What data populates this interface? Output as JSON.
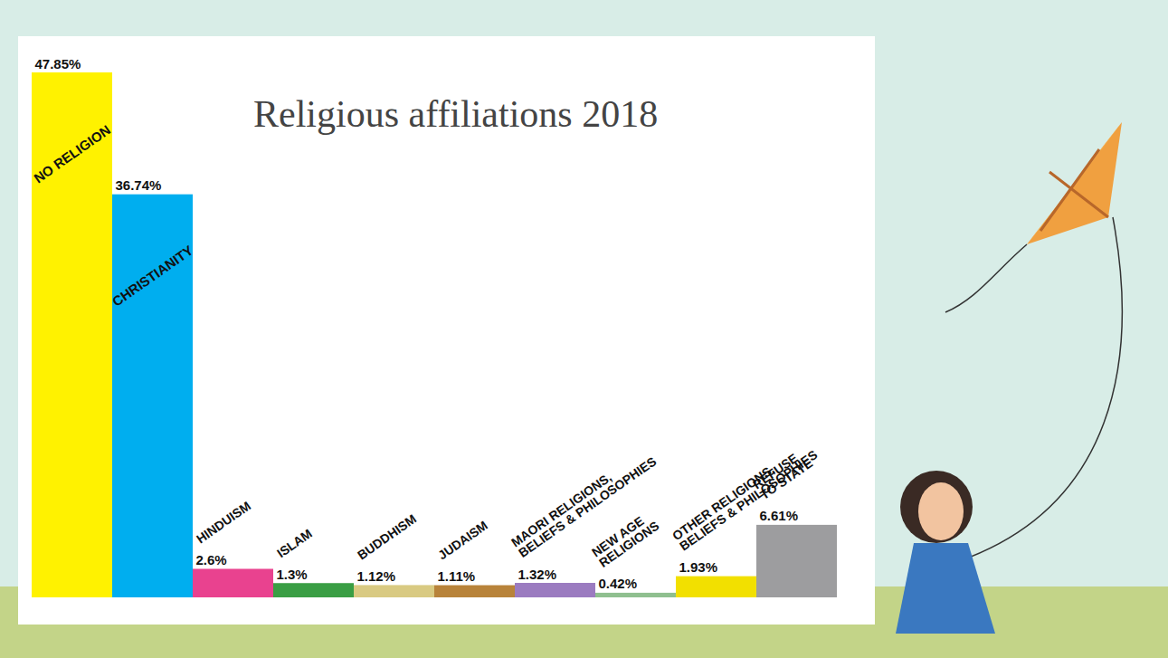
{
  "chart_data": {
    "type": "bar",
    "title": "Religious affiliations 2018",
    "categories": [
      "NO RELIGION",
      "CHRISTIANITY",
      "HINDUISM",
      "ISLAM",
      "BUDDHISM",
      "JUDAISM",
      "MAORI RELIGIONS, BELIEFS & PHILOSOPHIES",
      "NEW AGE RELIGIONS",
      "OTHER RELIGIONS, BELIEFS & PHILOSOPHIES",
      "REFUSE TO STATE"
    ],
    "values": [
      47.85,
      36.74,
      2.6,
      1.3,
      1.12,
      1.11,
      1.32,
      0.42,
      1.93,
      6.61
    ],
    "value_labels": [
      "47.85%",
      "36.74%",
      "2.6%",
      "1.3%",
      "1.12%",
      "1.11%",
      "1.32%",
      "0.42%",
      "1.93%",
      "6.61%"
    ],
    "colors": [
      "#fff200",
      "#00aeef",
      "#e9428f",
      "#3a9e44",
      "#d9ca82",
      "#b8833a",
      "#9b7bc0",
      "#8fbf8f",
      "#f2e000",
      "#9d9d9f"
    ],
    "data_labels": true,
    "tick_labels": false
  }
}
